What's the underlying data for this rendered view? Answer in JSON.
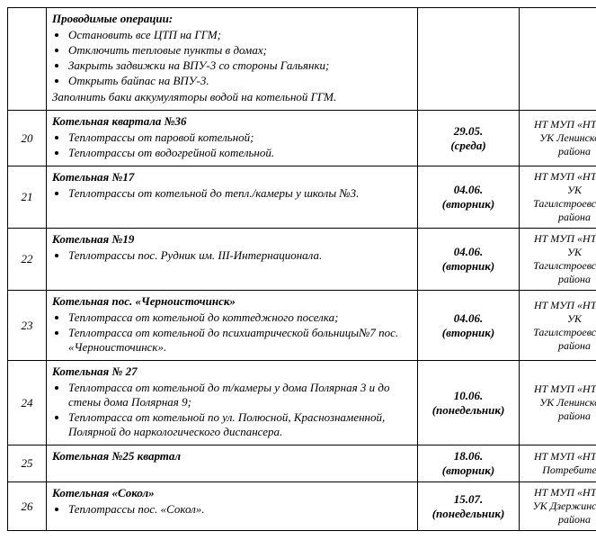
{
  "rows": [
    {
      "num": "",
      "title": "Проводимые операции:",
      "bullets": [
        "Остановить все ЦТП на ГГМ;",
        "Отключить тепловые пункты в домах;",
        "Закрыть задвижки на ВПУ-3 со стороны Гальянки;",
        "Открыть байпас на ВПУ-3."
      ],
      "after": "Заполнить баки аккумуляторы водой на котельной ГГМ.",
      "date": "",
      "org": ""
    },
    {
      "num": "20",
      "title": "Котельная квартала №36",
      "bullets": [
        "Теплотрассы от паровой котельной;",
        "Теплотрассы от водогрейной котельной."
      ],
      "date": "29.05.\n(среда)",
      "org": "НТ МУП «НТТС»\nУК Ленинского района"
    },
    {
      "num": "21",
      "title": "Котельная №17",
      "bullets": [
        "Теплотрассы от котельной до тепл./камеры у школы №3."
      ],
      "date": "04.06.\n(вторник)",
      "org": "НТ МУП «НТТС»\nУК Тагилстроевского района"
    },
    {
      "num": "22",
      "title": "Котельная №19",
      "bullets": [
        "Теплотрассы пос. Рудник им. III-Интернационала."
      ],
      "date": "04.06.\n(вторник)",
      "org": "НТ МУП «НТТС»\nУК Тагилстроевского района"
    },
    {
      "num": "23",
      "title": "Котельная пос. «Черноисточинск»",
      "bullets": [
        "Теплотрасса от котельной до коттеджного поселка;",
        "Теплотрасса от котельной до психиатрической больницы№7 пос. «Черноисточинск»."
      ],
      "date": "04.06.\n(вторник)",
      "org": "НТ МУП «НТТС»\nУК Тагилстроевского района"
    },
    {
      "num": "24",
      "title": "Котельная № 27",
      "bullets": [
        "Теплотрасса от котельной до т/камеры у дома Полярная 3 и до стены дома Полярная 9;",
        "Теплотрасса от котельной по ул. Полюсной, Краснознаменной, Полярной до наркологического диспансера."
      ],
      "date": "10.06.\n(понедельник)",
      "org": "НТ МУП «НТТС»\nУК Ленинского района"
    },
    {
      "num": "25",
      "title": "Котельная №25 квартал",
      "bullets": [],
      "date": "18.06.\n(вторник)",
      "org": "НТ МУП «НТТС»\nПотребители"
    },
    {
      "num": "26",
      "title": "Котельная «Сокол»",
      "bullets": [
        "Теплотрассы пос. «Сокол»."
      ],
      "date": "15.07.\n(понедельник)",
      "org": "НТ МУП «НТТС»\nУК Дзержинского района"
    }
  ]
}
